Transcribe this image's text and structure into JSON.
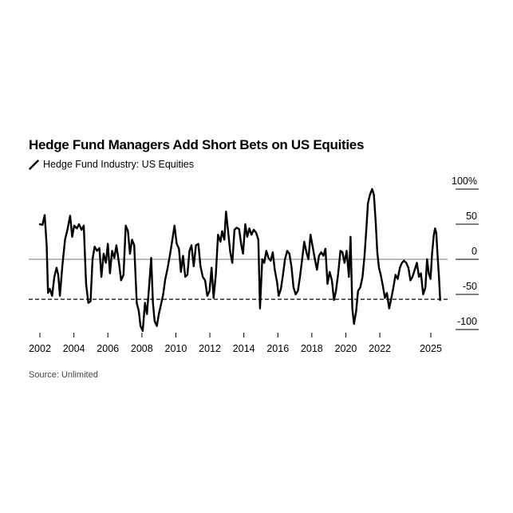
{
  "chart_data": {
    "type": "line",
    "title": "Hedge Fund Managers Add Short Bets on US Equities",
    "xlabel": "",
    "ylabel": "",
    "xlim": [
      2002,
      2025.8
    ],
    "ylim": [
      -100,
      100
    ],
    "y_ticks": [
      100,
      50,
      0,
      -50,
      -100
    ],
    "y_tick_labels": [
      "100%",
      "50",
      "0",
      "-50",
      "-100"
    ],
    "x_ticks": [
      2002,
      2004,
      2006,
      2008,
      2010,
      2012,
      2014,
      2016,
      2018,
      2020,
      2022,
      2025
    ],
    "x_tick_labels": [
      "2002",
      "2004",
      "2006",
      "2008",
      "2010",
      "2012",
      "2014",
      "2016",
      "2018",
      "2020",
      "2022",
      "2025"
    ],
    "reference_lines": [
      {
        "value": 0,
        "style": "solid"
      },
      {
        "value": -57,
        "style": "dashed"
      }
    ],
    "grid": false,
    "legend_position": "top-left",
    "series": [
      {
        "name": "Hedge Fund Industry: US Equities",
        "color": "#000000",
        "points": [
          [
            2002.0,
            50
          ],
          [
            2002.15,
            49
          ],
          [
            2002.28,
            63
          ],
          [
            2002.4,
            20
          ],
          [
            2002.48,
            -48
          ],
          [
            2002.58,
            -42
          ],
          [
            2002.72,
            -52
          ],
          [
            2002.85,
            -25
          ],
          [
            2002.98,
            -12
          ],
          [
            2003.08,
            -22
          ],
          [
            2003.18,
            -52
          ],
          [
            2003.32,
            -10
          ],
          [
            2003.48,
            28
          ],
          [
            2003.62,
            42
          ],
          [
            2003.78,
            62
          ],
          [
            2003.9,
            32
          ],
          [
            2004.02,
            48
          ],
          [
            2004.18,
            44
          ],
          [
            2004.3,
            50
          ],
          [
            2004.45,
            42
          ],
          [
            2004.58,
            48
          ],
          [
            2004.72,
            -35
          ],
          [
            2004.85,
            -62
          ],
          [
            2004.98,
            -60
          ],
          [
            2005.1,
            0
          ],
          [
            2005.22,
            18
          ],
          [
            2005.36,
            12
          ],
          [
            2005.5,
            16
          ],
          [
            2005.62,
            -25
          ],
          [
            2005.75,
            8
          ],
          [
            2005.88,
            -5
          ],
          [
            2006.0,
            22
          ],
          [
            2006.12,
            -20
          ],
          [
            2006.25,
            12
          ],
          [
            2006.38,
            2
          ],
          [
            2006.5,
            20
          ],
          [
            2006.65,
            -5
          ],
          [
            2006.78,
            -30
          ],
          [
            2006.92,
            -22
          ],
          [
            2007.05,
            48
          ],
          [
            2007.18,
            40
          ],
          [
            2007.3,
            8
          ],
          [
            2007.42,
            28
          ],
          [
            2007.55,
            20
          ],
          [
            2007.7,
            -62
          ],
          [
            2007.82,
            -74
          ],
          [
            2007.92,
            -95
          ],
          [
            2008.05,
            -102
          ],
          [
            2008.18,
            -62
          ],
          [
            2008.3,
            -78
          ],
          [
            2008.42,
            -40
          ],
          [
            2008.55,
            2
          ],
          [
            2008.65,
            -62
          ],
          [
            2008.75,
            -88
          ],
          [
            2008.88,
            -95
          ],
          [
            2009.0,
            -78
          ],
          [
            2009.12,
            -65
          ],
          [
            2009.25,
            -50
          ],
          [
            2009.38,
            -28
          ],
          [
            2009.52,
            -12
          ],
          [
            2009.68,
            10
          ],
          [
            2009.82,
            32
          ],
          [
            2009.92,
            48
          ],
          [
            2010.05,
            22
          ],
          [
            2010.18,
            15
          ],
          [
            2010.3,
            -18
          ],
          [
            2010.42,
            5
          ],
          [
            2010.55,
            -25
          ],
          [
            2010.68,
            -22
          ],
          [
            2010.8,
            12
          ],
          [
            2010.92,
            20
          ],
          [
            2011.05,
            -10
          ],
          [
            2011.18,
            20
          ],
          [
            2011.32,
            22
          ],
          [
            2011.45,
            -10
          ],
          [
            2011.58,
            -25
          ],
          [
            2011.72,
            -30
          ],
          [
            2011.85,
            -52
          ],
          [
            2011.98,
            -45
          ],
          [
            2012.1,
            -12
          ],
          [
            2012.22,
            -55
          ],
          [
            2012.35,
            -22
          ],
          [
            2012.48,
            35
          ],
          [
            2012.62,
            25
          ],
          [
            2012.72,
            40
          ],
          [
            2012.85,
            28
          ],
          [
            2012.95,
            68
          ],
          [
            2013.08,
            38
          ],
          [
            2013.2,
            10
          ],
          [
            2013.32,
            -5
          ],
          [
            2013.45,
            42
          ],
          [
            2013.58,
            45
          ],
          [
            2013.72,
            43
          ],
          [
            2013.85,
            20
          ],
          [
            2013.95,
            8
          ],
          [
            2014.08,
            50
          ],
          [
            2014.2,
            32
          ],
          [
            2014.32,
            44
          ],
          [
            2014.45,
            35
          ],
          [
            2014.58,
            42
          ],
          [
            2014.72,
            38
          ],
          [
            2014.85,
            28
          ],
          [
            2014.95,
            -70
          ],
          [
            2015.08,
            0
          ],
          [
            2015.2,
            -5
          ],
          [
            2015.32,
            12
          ],
          [
            2015.45,
            2
          ],
          [
            2015.58,
            -2
          ],
          [
            2015.7,
            10
          ],
          [
            2015.82,
            -15
          ],
          [
            2015.95,
            -32
          ],
          [
            2016.05,
            -52
          ],
          [
            2016.18,
            -42
          ],
          [
            2016.3,
            -22
          ],
          [
            2016.42,
            0
          ],
          [
            2016.55,
            12
          ],
          [
            2016.68,
            8
          ],
          [
            2016.8,
            -10
          ],
          [
            2016.92,
            -40
          ],
          [
            2017.05,
            -50
          ],
          [
            2017.18,
            -45
          ],
          [
            2017.3,
            -25
          ],
          [
            2017.42,
            -2
          ],
          [
            2017.55,
            25
          ],
          [
            2017.68,
            10
          ],
          [
            2017.8,
            0
          ],
          [
            2017.92,
            35
          ],
          [
            2018.05,
            18
          ],
          [
            2018.18,
            0
          ],
          [
            2018.3,
            -15
          ],
          [
            2018.42,
            5
          ],
          [
            2018.55,
            10
          ],
          [
            2018.68,
            5
          ],
          [
            2018.8,
            15
          ],
          [
            2018.92,
            -35
          ],
          [
            2019.05,
            -18
          ],
          [
            2019.18,
            -30
          ],
          [
            2019.3,
            -58
          ],
          [
            2019.42,
            -45
          ],
          [
            2019.55,
            -20
          ],
          [
            2019.68,
            12
          ],
          [
            2019.8,
            10
          ],
          [
            2019.92,
            -5
          ],
          [
            2020.05,
            12
          ],
          [
            2020.18,
            -25
          ],
          [
            2020.28,
            32
          ],
          [
            2020.38,
            -70
          ],
          [
            2020.48,
            -92
          ],
          [
            2020.6,
            -75
          ],
          [
            2020.72,
            -45
          ],
          [
            2020.85,
            -40
          ],
          [
            2020.98,
            -25
          ],
          [
            2021.1,
            5
          ],
          [
            2021.2,
            40
          ],
          [
            2021.3,
            80
          ],
          [
            2021.42,
            92
          ],
          [
            2021.55,
            100
          ],
          [
            2021.65,
            92
          ],
          [
            2021.75,
            55
          ],
          [
            2021.85,
            10
          ],
          [
            2021.95,
            -12
          ],
          [
            2022.05,
            -22
          ],
          [
            2022.18,
            -38
          ],
          [
            2022.3,
            -55
          ],
          [
            2022.42,
            -48
          ],
          [
            2022.55,
            -70
          ],
          [
            2022.68,
            -55
          ],
          [
            2022.8,
            -40
          ],
          [
            2022.92,
            -22
          ],
          [
            2023.05,
            -28
          ],
          [
            2023.18,
            -12
          ],
          [
            2023.3,
            -5
          ],
          [
            2023.42,
            -2
          ],
          [
            2023.55,
            -5
          ],
          [
            2023.68,
            -12
          ],
          [
            2023.8,
            -30
          ],
          [
            2023.92,
            -25
          ],
          [
            2024.05,
            -15
          ],
          [
            2024.18,
            -5
          ],
          [
            2024.3,
            -25
          ],
          [
            2024.42,
            -20
          ],
          [
            2024.55,
            -50
          ],
          [
            2024.68,
            -40
          ],
          [
            2024.78,
            0
          ],
          [
            2024.88,
            -20
          ],
          [
            2024.98,
            -28
          ],
          [
            2025.08,
            10
          ],
          [
            2025.18,
            35
          ],
          [
            2025.25,
            44
          ],
          [
            2025.32,
            38
          ],
          [
            2025.4,
            5
          ],
          [
            2025.48,
            -25
          ],
          [
            2025.55,
            -58
          ]
        ]
      }
    ]
  },
  "source": "Source: Unlimited"
}
